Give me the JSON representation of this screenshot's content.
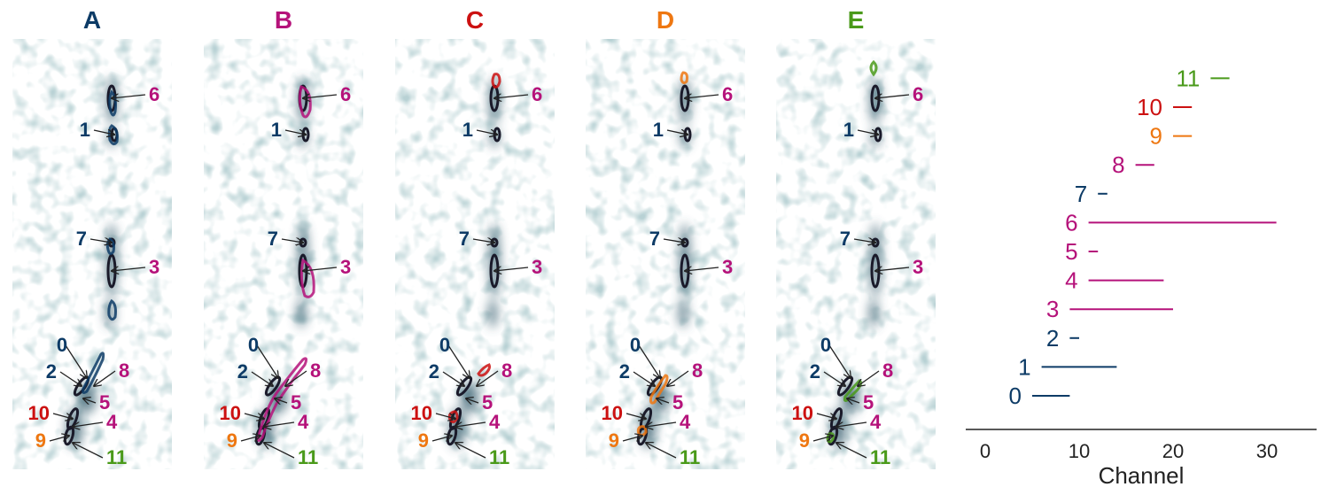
{
  "colors": {
    "A": "#0d3b66",
    "B": "#b5127a",
    "C": "#cc1111",
    "D": "#ee7711",
    "E": "#4a9a1a",
    "ink": "#1a1a2a"
  },
  "panels": [
    {
      "id": "A",
      "title": "A"
    },
    {
      "id": "B",
      "title": "B"
    },
    {
      "id": "C",
      "title": "C"
    },
    {
      "id": "D",
      "title": "D"
    },
    {
      "id": "E",
      "title": "E"
    }
  ],
  "components": [
    {
      "label": "0",
      "group": "A"
    },
    {
      "label": "1",
      "group": "A"
    },
    {
      "label": "2",
      "group": "A"
    },
    {
      "label": "3",
      "group": "B"
    },
    {
      "label": "4",
      "group": "B"
    },
    {
      "label": "5",
      "group": "B"
    },
    {
      "label": "6",
      "group": "B"
    },
    {
      "label": "7",
      "group": "A"
    },
    {
      "label": "8",
      "group": "B"
    },
    {
      "label": "9",
      "group": "D"
    },
    {
      "label": "10",
      "group": "C"
    },
    {
      "label": "11",
      "group": "E"
    }
  ],
  "chart_data": {
    "type": "bar",
    "orientation": "horizontal",
    "xlabel": "Channel",
    "ylabel": "",
    "xlim": [
      -2,
      35
    ],
    "xticks": [
      0,
      10,
      20,
      30
    ],
    "grid": false,
    "series": [
      {
        "label": "0",
        "start": 5,
        "end": 9,
        "group": "A"
      },
      {
        "label": "1",
        "start": 6,
        "end": 14,
        "group": "A"
      },
      {
        "label": "2",
        "start": 9,
        "end": 10,
        "group": "A"
      },
      {
        "label": "3",
        "start": 9,
        "end": 20,
        "group": "B"
      },
      {
        "label": "4",
        "start": 11,
        "end": 19,
        "group": "B"
      },
      {
        "label": "5",
        "start": 11,
        "end": 12,
        "group": "B"
      },
      {
        "label": "6",
        "start": 11,
        "end": 31,
        "group": "B"
      },
      {
        "label": "7",
        "start": 12,
        "end": 13,
        "group": "A"
      },
      {
        "label": "8",
        "start": 16,
        "end": 18,
        "group": "B"
      },
      {
        "label": "9",
        "start": 20,
        "end": 22,
        "group": "D"
      },
      {
        "label": "10",
        "start": 20,
        "end": 22,
        "group": "C"
      },
      {
        "label": "11",
        "start": 24,
        "end": 26,
        "group": "E"
      }
    ]
  }
}
